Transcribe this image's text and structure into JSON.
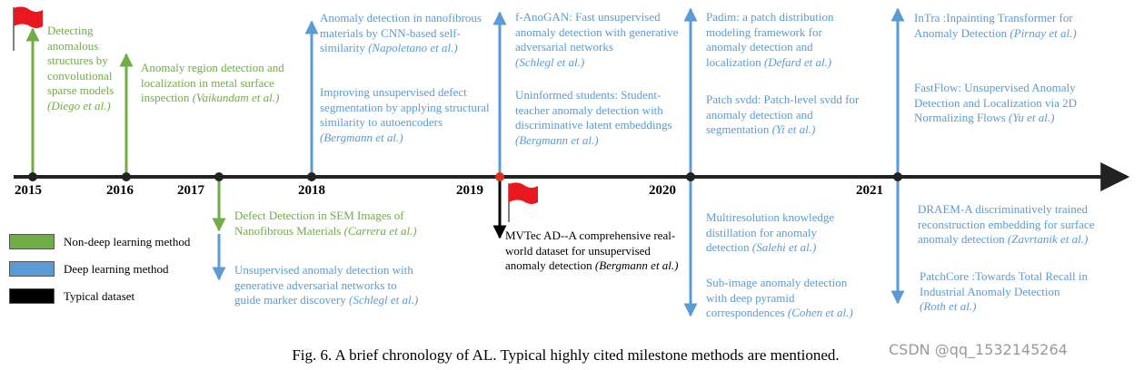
{
  "timeline": {
    "years": [
      "2015",
      "2016",
      "2017",
      "2018",
      "2019",
      "2020",
      "2021"
    ],
    "entries": [
      {
        "title": "Detecting anomalous structures by convolutional sparse models",
        "authors": "(Diego et al.)",
        "color": "#70ad47"
      },
      {
        "title": "Anomaly region detection and localization in metal surface inspection",
        "authors": "(Vaikundam et al.)",
        "color": "#70ad47"
      },
      {
        "title": "Anomaly detection in nanofibrous materials by CNN-based self-similarity",
        "authors": "(Napoletano et al.)",
        "color": "#5b9bd5"
      },
      {
        "title": "Improving unsupervised defect segmentation by applying structural similarity to autoencoders",
        "authors": "(Bergmann et al.)",
        "color": "#5b9bd5"
      },
      {
        "title": "Defect Detection in SEM Images of Nanofibrous Materials",
        "authors": "(Carrera et al.)",
        "color": "#70ad47"
      },
      {
        "title": "Unsupervised anomaly detection with generative adversarial networks to guide marker discovery",
        "authors": "(Schlegl et al.)",
        "color": "#5b9bd5"
      },
      {
        "title": "f-AnoGAN: Fast unsupervised anomaly detection with generative adversarial networks",
        "authors": "(Schlegl et al.)",
        "color": "#5b9bd5"
      },
      {
        "title": "Uninformed students: Student-teacher anomaly detection with discriminative latent embeddings",
        "authors": "(Bergmann et al.)",
        "color": "#5b9bd5"
      },
      {
        "title": "MVTec AD--A comprehensive real-world dataset for unsupervised anomaly detection",
        "authors": "(Bergmann et al.)",
        "color": "#000000"
      },
      {
        "title": "Padim: a patch distribution modeling framework for anomaly detection and localization",
        "authors": "(Defard et al.)",
        "color": "#5b9bd5"
      },
      {
        "title": "Patch svdd: Patch-level svdd for anomaly detection and segmentation",
        "authors": "(Yi et al.)",
        "color": "#5b9bd5"
      },
      {
        "title": "Multiresolution knowledge distillation for anomaly detection",
        "authors": "(Salehi et al.)",
        "color": "#5b9bd5"
      },
      {
        "title": "Sub-image anomaly detection with deep pyramid correspondences",
        "authors": "(Cohen et al.)",
        "color": "#5b9bd5"
      },
      {
        "title": "InTra :Inpainting Transformer for Anomaly Detection",
        "authors": "(Pirnay et al.)",
        "color": "#5b9bd5"
      },
      {
        "title": "FastFlow: Unsupervised Anomaly Detection and Localization via 2D Normalizing Flows",
        "authors": "(Yu et al.)",
        "color": "#5b9bd5"
      },
      {
        "title": "DRAEM-A discriminatively trained reconstruction embedding for surface anomaly detection",
        "authors": "(Zavrtanik et al.)",
        "color": "#5b9bd5"
      },
      {
        "title": "PatchCore :Towards Total Recall in Industrial Anomaly Detection",
        "authors": "(Roth et al.)",
        "color": "#5b9bd5"
      }
    ]
  },
  "legend": [
    {
      "label": "Non-deep learning method",
      "color": "#70ad47"
    },
    {
      "label": "Deep learning method",
      "color": "#5b9bd5"
    },
    {
      "label": "Typical dataset",
      "color": "#000000"
    }
  ],
  "caption": "Fig. 6. A brief chronology of AL. Typical highly cited milestone methods are mentioned.",
  "watermark": "CSDN @qq_1532145264"
}
